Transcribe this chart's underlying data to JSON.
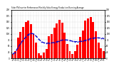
{
  "title": "Solar PV/Inverter Performance Monthly Solar Energy Production Running Average",
  "bar_color": "#ff0000",
  "avg_line_color": "#0000cc",
  "background_color": "#ffffff",
  "grid_color": "#aaaaaa",
  "values": [
    18,
    30,
    85,
    110,
    130,
    150,
    155,
    140,
    100,
    65,
    22,
    12,
    25,
    38,
    90,
    100,
    125,
    145,
    160,
    148,
    105,
    58,
    28,
    18,
    28,
    55,
    88,
    115,
    155,
    165,
    170,
    150,
    112,
    65,
    42,
    30
  ],
  "running_avg": [
    18,
    24,
    44.3,
    60.8,
    74.6,
    87.2,
    98.3,
    103.5,
    101.0,
    91.5,
    79.5,
    68.9,
    63.8,
    61.8,
    63.2,
    63.7,
    65.5,
    68.0,
    71.5,
    75.1,
    76.4,
    75.3,
    73.2,
    70.5,
    68.7,
    68.9,
    69.3,
    71.0,
    74.2,
    77.6,
    81.0,
    83.3,
    84.8,
    84.3,
    83.3,
    82.3
  ],
  "ylim": [
    0,
    200
  ],
  "yticks": [
    0,
    25,
    50,
    75,
    100,
    125,
    150,
    175,
    200
  ],
  "xtick_labels": [
    "Jan\n'10",
    "Feb\n'10",
    "Mar\n'10",
    "Apr\n'10",
    "May\n'10",
    "Jun\n'10",
    "Jul\n'10",
    "Aug\n'10",
    "Sep\n'10",
    "Oct\n'10",
    "Nov\n'10",
    "Dec\n'10",
    "Jan\n'11",
    "Feb\n'11",
    "Mar\n'11",
    "Apr\n'11",
    "May\n'11",
    "Jun\n'11",
    "Jul\n'11",
    "Aug\n'11",
    "Sep\n'11",
    "Oct\n'11",
    "Nov\n'11",
    "Dec\n'11",
    "Jan\n'12",
    "Feb\n'12",
    "Mar\n'12",
    "Apr\n'12",
    "May\n'12",
    "Jun\n'12",
    "Jul\n'12",
    "Aug\n'12",
    "Sep\n'12",
    "Oct\n'12",
    "Nov\n'12",
    "Dec\n'12"
  ]
}
